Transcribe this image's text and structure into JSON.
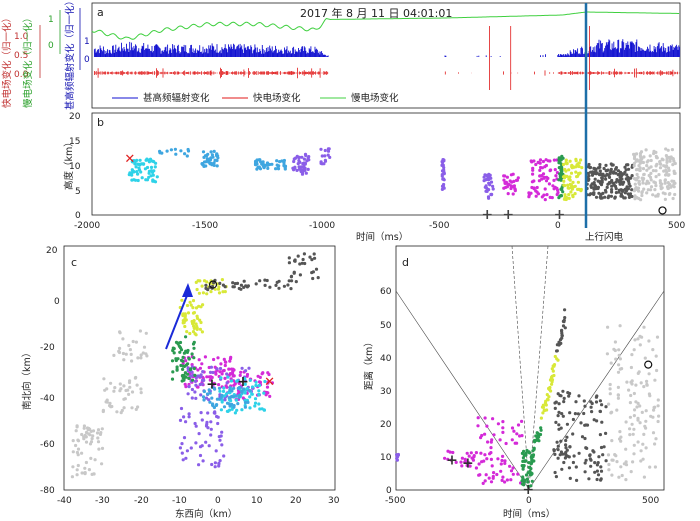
{
  "colors": {
    "vhf": "#1010d0",
    "fast": "#e01818",
    "slow": "#40d040",
    "initial_cross": "#e02020",
    "uplink_line": "#1d6fa8",
    "arrow": "#1a2ad8",
    "palette_cyan": "#2ed2e8",
    "palette_sky": "#3fa6e0",
    "palette_violet": "#8a5ee8",
    "palette_magenta": "#d42ad8",
    "palette_green": "#2a9a50",
    "palette_yellow": "#d8e838",
    "palette_gray_dark": "#555555",
    "palette_gray_light": "#c8c8c8"
  },
  "panel_a": {
    "label": "a",
    "title": "2017 年 8 月 11 日 04:01:01",
    "ylabels": [
      "快电场变化（归一化）",
      "慢电场变化（归一化）",
      "甚高频辐射变化（归一化）"
    ],
    "yticks_fast": [
      "1.0",
      "0.5",
      "0.0"
    ],
    "yticks_slow": [
      "1",
      "0"
    ],
    "yticks_vhf": [
      "1",
      "0"
    ],
    "legend": [
      "甚高频辐射变化",
      "快电场变化",
      "慢电场变化"
    ]
  },
  "panel_b": {
    "label": "b",
    "ylabel": "高度（km）",
    "xlabel": "时间（ms）",
    "yticks": [
      "20",
      "15",
      "10",
      "5",
      "0"
    ],
    "xticks": [
      "-2000",
      "-1500",
      "-1000",
      "-500",
      "0",
      "500"
    ],
    "annotation": "上行闪电"
  },
  "panel_c": {
    "label": "c",
    "xlabel": "东西向（km）",
    "ylabel": "南北向（km）",
    "xticks": [
      "-40",
      "-30",
      "-20",
      "-10",
      "0",
      "10",
      "20",
      "30"
    ],
    "yticks": [
      "20",
      "0",
      "-20",
      "-40",
      "-60",
      "-80"
    ]
  },
  "panel_d": {
    "label": "d",
    "xlabel": "时间（ms）",
    "ylabel": "距离（km）",
    "xticks": [
      "-500",
      "0",
      "500"
    ],
    "yticks": [
      "60",
      "50",
      "40",
      "30",
      "20",
      "10",
      "0"
    ]
  },
  "chart_data": [
    {
      "type": "line",
      "panel": "a",
      "xlim": [
        -2000,
        500
      ],
      "series": [
        {
          "name": "甚高频辐射变化",
          "x": [
            -1950,
            -1850,
            -1700,
            -1500,
            -1300,
            -1050,
            -1000,
            -500,
            -300,
            0,
            150,
            300,
            450,
            500
          ],
          "values": [
            0.25,
            0.45,
            0.35,
            0.4,
            0.35,
            0.3,
            0.05,
            0.05,
            0.05,
            0.1,
            0.5,
            0.5,
            0.4,
            0.35
          ]
        },
        {
          "name": "快电场变化",
          "x": [
            -2000,
            -1500,
            -1000,
            -500,
            0,
            500
          ],
          "values": [
            0.0,
            0.0,
            0.0,
            0.0,
            0.0,
            0.0
          ]
        },
        {
          "name": "慢电场变化",
          "x": [
            -2000,
            -1850,
            -1700,
            -1500,
            -1300,
            -1050,
            -1000,
            -500,
            0,
            100,
            500
          ],
          "values": [
            0.9,
            0.6,
            0.9,
            1.1,
            1.1,
            0.9,
            1.25,
            1.3,
            1.4,
            1.5,
            1.45
          ]
        }
      ]
    },
    {
      "type": "scatter",
      "panel": "b",
      "xlim": [
        -2000,
        520
      ],
      "ylim": [
        0,
        20
      ],
      "x_event_marker": 115,
      "initial_point": {
        "x": -1840,
        "y": 11
      },
      "plus_markers": [
        {
          "x": -310,
          "y": 0
        },
        {
          "x": -220,
          "y": 0
        },
        {
          "x": 0,
          "y": 0
        }
      ],
      "circle_marker": {
        "x": 445,
        "y": 0.5
      }
    },
    {
      "type": "scatter",
      "panel": "c",
      "xlim": [
        -40,
        30
      ],
      "ylim": [
        -80,
        15
      ],
      "initial_point": {
        "x": 13,
        "y": -38
      },
      "plus_markers": [
        {
          "x": -2,
          "y": -39
        },
        {
          "x": 6,
          "y": -38
        }
      ],
      "circle_marker": {
        "x": -1.5,
        "y": 0
      }
    },
    {
      "type": "scatter",
      "panel": "d",
      "xlim": [
        -500,
        520
      ],
      "ylim": [
        0,
        60
      ],
      "plus_markers": [
        {
          "x": -290,
          "y": 9
        },
        {
          "x": -230,
          "y": 8
        },
        {
          "x": 0,
          "y": 0
        }
      ],
      "circle_marker": {
        "x": 460,
        "y": 38
      }
    }
  ]
}
